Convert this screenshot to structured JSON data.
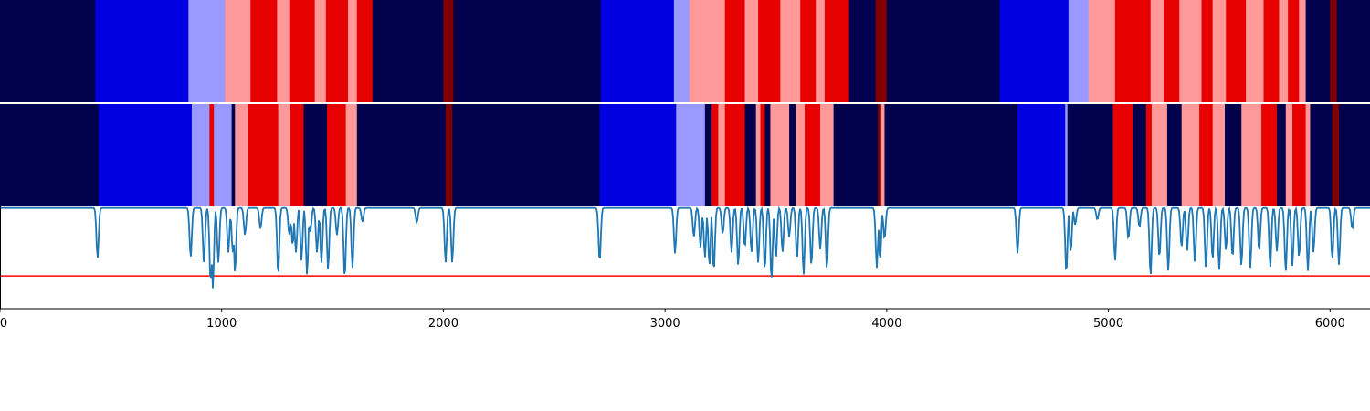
{
  "chart_data": {
    "type": "heatmap",
    "x_range": [
      0,
      6180
    ],
    "xticks": [
      "0",
      "1000",
      "2000",
      "3000",
      "4000",
      "5000",
      "6000"
    ],
    "xtick_values": [
      0,
      1000,
      2000,
      3000,
      4000,
      5000,
      6000
    ],
    "state_colors": {
      "0": "#00004c",
      "1": "#0000e0",
      "2": "#9999ff",
      "3": "#ff9999",
      "4": "#e60000",
      "5": "#800000"
    },
    "rows": [
      {
        "segments": [
          [
            0,
            430,
            0
          ],
          [
            430,
            850,
            1
          ],
          [
            850,
            1015,
            2
          ],
          [
            1015,
            1130,
            3
          ],
          [
            1130,
            1250,
            4
          ],
          [
            1250,
            1305,
            3
          ],
          [
            1305,
            1420,
            4
          ],
          [
            1420,
            1470,
            3
          ],
          [
            1470,
            1570,
            4
          ],
          [
            1570,
            1610,
            3
          ],
          [
            1610,
            1680,
            4
          ],
          [
            1680,
            2000,
            0
          ],
          [
            2000,
            2045,
            5
          ],
          [
            2045,
            2710,
            0
          ],
          [
            2710,
            3040,
            1
          ],
          [
            3040,
            3110,
            2
          ],
          [
            3110,
            3270,
            3
          ],
          [
            3270,
            3360,
            4
          ],
          [
            3360,
            3420,
            3
          ],
          [
            3420,
            3520,
            4
          ],
          [
            3520,
            3610,
            3
          ],
          [
            3610,
            3680,
            4
          ],
          [
            3680,
            3720,
            3
          ],
          [
            3720,
            3830,
            4
          ],
          [
            3830,
            3950,
            0
          ],
          [
            3950,
            4000,
            5
          ],
          [
            4000,
            4510,
            0
          ],
          [
            4510,
            4820,
            1
          ],
          [
            4820,
            4910,
            2
          ],
          [
            4910,
            5030,
            3
          ],
          [
            5030,
            5190,
            4
          ],
          [
            5190,
            5250,
            3
          ],
          [
            5250,
            5320,
            4
          ],
          [
            5320,
            5420,
            3
          ],
          [
            5420,
            5470,
            4
          ],
          [
            5470,
            5530,
            3
          ],
          [
            5530,
            5620,
            4
          ],
          [
            5620,
            5700,
            3
          ],
          [
            5700,
            5770,
            4
          ],
          [
            5770,
            5810,
            3
          ],
          [
            5810,
            5860,
            4
          ],
          [
            5860,
            5890,
            3
          ],
          [
            5890,
            6000,
            0
          ],
          [
            6000,
            6030,
            5
          ],
          [
            6030,
            6180,
            0
          ]
        ]
      },
      {
        "segments": [
          [
            0,
            445,
            0
          ],
          [
            445,
            865,
            1
          ],
          [
            865,
            945,
            2
          ],
          [
            945,
            965,
            4
          ],
          [
            965,
            1045,
            2
          ],
          [
            1045,
            1060,
            0
          ],
          [
            1060,
            1120,
            3
          ],
          [
            1120,
            1255,
            4
          ],
          [
            1255,
            1310,
            3
          ],
          [
            1310,
            1370,
            4
          ],
          [
            1370,
            1475,
            0
          ],
          [
            1475,
            1560,
            4
          ],
          [
            1560,
            1610,
            3
          ],
          [
            1610,
            2010,
            0
          ],
          [
            2010,
            2040,
            5
          ],
          [
            2040,
            2705,
            0
          ],
          [
            2705,
            3050,
            1
          ],
          [
            3050,
            3180,
            2
          ],
          [
            3180,
            3210,
            0
          ],
          [
            3210,
            3240,
            4
          ],
          [
            3240,
            3270,
            3
          ],
          [
            3270,
            3360,
            4
          ],
          [
            3360,
            3410,
            0
          ],
          [
            3410,
            3430,
            3
          ],
          [
            3430,
            3450,
            4
          ],
          [
            3450,
            3475,
            0
          ],
          [
            3475,
            3560,
            3
          ],
          [
            3560,
            3590,
            0
          ],
          [
            3590,
            3630,
            3
          ],
          [
            3630,
            3700,
            4
          ],
          [
            3700,
            3760,
            3
          ],
          [
            3760,
            3960,
            0
          ],
          [
            3960,
            3975,
            5
          ],
          [
            3975,
            3990,
            3
          ],
          [
            3990,
            4590,
            0
          ],
          [
            4590,
            4805,
            1
          ],
          [
            4805,
            4815,
            2
          ],
          [
            4815,
            5020,
            0
          ],
          [
            5020,
            5110,
            4
          ],
          [
            5110,
            5170,
            0
          ],
          [
            5170,
            5195,
            4
          ],
          [
            5195,
            5265,
            3
          ],
          [
            5265,
            5330,
            0
          ],
          [
            5330,
            5410,
            3
          ],
          [
            5410,
            5470,
            4
          ],
          [
            5470,
            5525,
            3
          ],
          [
            5525,
            5600,
            0
          ],
          [
            5600,
            5690,
            3
          ],
          [
            5690,
            5760,
            4
          ],
          [
            5760,
            5800,
            0
          ],
          [
            5800,
            5830,
            3
          ],
          [
            5830,
            5890,
            4
          ],
          [
            5890,
            5910,
            3
          ],
          [
            5910,
            6010,
            0
          ],
          [
            6010,
            6040,
            5
          ],
          [
            6040,
            6180,
            0
          ]
        ]
      }
    ],
    "line_series": {
      "color": "#1f77b4",
      "ylim": [
        0,
        1
      ],
      "baseline": 0.985,
      "threshold": 0.32,
      "threshold_color": "#ff0000",
      "dips": [
        [
          440,
          0.49
        ],
        [
          860,
          0.5
        ],
        [
          920,
          0.44
        ],
        [
          950,
          0.26
        ],
        [
          960,
          0.2
        ],
        [
          985,
          0.45
        ],
        [
          1030,
          0.55
        ],
        [
          1050,
          0.55
        ],
        [
          1060,
          0.35
        ],
        [
          1105,
          0.72
        ],
        [
          1175,
          0.78
        ],
        [
          1255,
          0.33
        ],
        [
          1305,
          0.72
        ],
        [
          1320,
          0.62
        ],
        [
          1335,
          0.55
        ],
        [
          1360,
          0.47
        ],
        [
          1385,
          0.33
        ],
        [
          1400,
          0.75
        ],
        [
          1430,
          0.55
        ],
        [
          1450,
          0.45
        ],
        [
          1480,
          0.38
        ],
        [
          1520,
          0.72
        ],
        [
          1555,
          0.3
        ],
        [
          1590,
          0.4
        ],
        [
          1635,
          0.85
        ],
        [
          1880,
          0.84
        ],
        [
          2010,
          0.45
        ],
        [
          2040,
          0.45
        ],
        [
          2705,
          0.46
        ],
        [
          3045,
          0.54
        ],
        [
          3130,
          0.7
        ],
        [
          3160,
          0.6
        ],
        [
          3180,
          0.5
        ],
        [
          3200,
          0.42
        ],
        [
          3220,
          0.37
        ],
        [
          3260,
          0.73
        ],
        [
          3300,
          0.55
        ],
        [
          3330,
          0.42
        ],
        [
          3360,
          0.6
        ],
        [
          3390,
          0.55
        ],
        [
          3420,
          0.45
        ],
        [
          3450,
          0.38
        ],
        [
          3480,
          0.28
        ],
        [
          3500,
          0.48
        ],
        [
          3530,
          0.55
        ],
        [
          3560,
          0.7
        ],
        [
          3595,
          0.48
        ],
        [
          3625,
          0.33
        ],
        [
          3660,
          0.42
        ],
        [
          3700,
          0.58
        ],
        [
          3730,
          0.38
        ],
        [
          3955,
          0.4
        ],
        [
          3970,
          0.47
        ],
        [
          3990,
          0.68
        ],
        [
          4590,
          0.54
        ],
        [
          4810,
          0.35
        ],
        [
          4830,
          0.55
        ],
        [
          4850,
          0.82
        ],
        [
          4950,
          0.87
        ],
        [
          5030,
          0.47
        ],
        [
          5090,
          0.68
        ],
        [
          5140,
          0.8
        ],
        [
          5190,
          0.32
        ],
        [
          5230,
          0.5
        ],
        [
          5270,
          0.37
        ],
        [
          5330,
          0.6
        ],
        [
          5355,
          0.56
        ],
        [
          5390,
          0.45
        ],
        [
          5440,
          0.38
        ],
        [
          5470,
          0.48
        ],
        [
          5500,
          0.38
        ],
        [
          5530,
          0.57
        ],
        [
          5560,
          0.5
        ],
        [
          5600,
          0.42
        ],
        [
          5640,
          0.4
        ],
        [
          5680,
          0.56
        ],
        [
          5730,
          0.4
        ],
        [
          5760,
          0.56
        ],
        [
          5800,
          0.36
        ],
        [
          5830,
          0.42
        ],
        [
          5860,
          0.5
        ],
        [
          5900,
          0.37
        ],
        [
          5925,
          0.55
        ],
        [
          6010,
          0.48
        ],
        [
          6040,
          0.43
        ],
        [
          6100,
          0.78
        ]
      ]
    },
    "xlabel": "",
    "ylabel": "",
    "title": ""
  }
}
